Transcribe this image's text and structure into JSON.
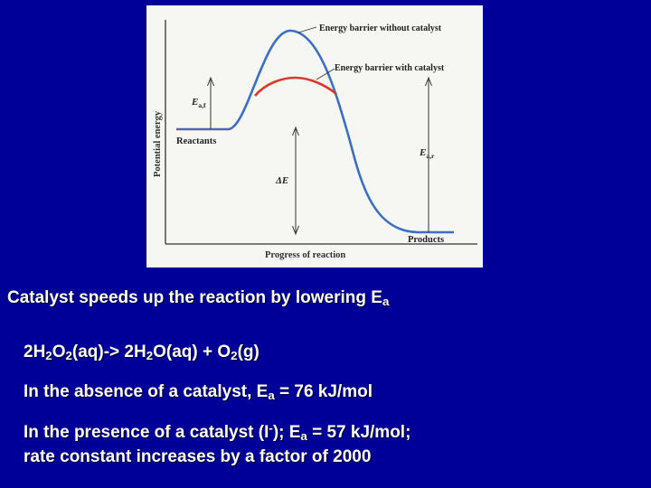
{
  "figure": {
    "y_axis_label": "Potential energy",
    "x_axis_label": "Progress of reaction",
    "label_barrier_without": "Energy barrier without catalyst",
    "label_barrier_with": "Energy barrier with catalyst",
    "label_reactants": "Reactants",
    "label_products": "Products",
    "label_ea_f_main": "E",
    "label_ea_f_sub": "a,f",
    "label_ea_r_main": "E",
    "label_ea_r_sub": "a,r",
    "label_delta_e": "ΔE",
    "colors": {
      "uncatalyzed": "#3a6fc4",
      "catalyzed": "#d93a2b"
    }
  },
  "caption": {
    "main_text": "Catalyst speeds up the reaction by lowering E",
    "main_sub": "a",
    "eq_p1": "2H",
    "eq_s1": "2",
    "eq_p2": "O",
    "eq_s2": "2",
    "eq_p3": "(aq)-> 2H",
    "eq_s3": "2",
    "eq_p4": "O(aq) + O",
    "eq_s4": "2",
    "eq_p5": "(g)",
    "absence_pre": "In the absence of a catalyst, E",
    "absence_sub": "a",
    "absence_post": " = 76 kJ/mol",
    "presence_pre": "In the presence of a catalyst (I",
    "presence_sup": "-",
    "presence_mid": "); E",
    "presence_sub": "a",
    "presence_post": " = 57 kJ/mol;",
    "presence_line2": "rate constant increases by a factor of 2000"
  }
}
